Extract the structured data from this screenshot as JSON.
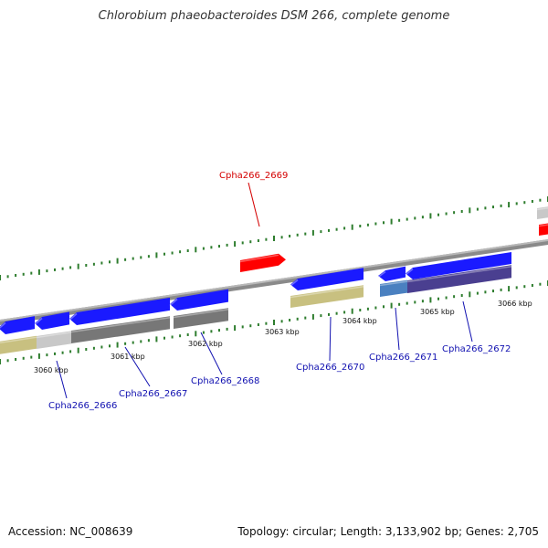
{
  "title": "Chlorobium phaeobacteroides DSM 266, complete genome",
  "accession": "Accession: NC_008639",
  "topology": "Topology: circular; Length: 3,133,902 bp; Genes: 2,705",
  "colors": {
    "backbone": "#8a8a8a",
    "ticks": "#2e7d2e",
    "highlight_label": "#d40000",
    "gene_label": "#1010b0",
    "blue_gene": "#1a1aff",
    "red_gene": "#ff0000",
    "khaki": "#c8c080",
    "gray": "#777777",
    "light_gray": "#c8c8c8",
    "steel_blue": "#4a80c0",
    "slate_purple": "#4a3f90"
  },
  "kbp_labels": [
    "3060 kbp",
    "3061 kbp",
    "3062 kbp",
    "3063 kbp",
    "3064 kbp",
    "3065 kbp",
    "3066 kbp"
  ],
  "gene_labels": [
    "Cpha266_2666",
    "Cpha266_2667",
    "Cpha266_2668",
    "Cpha266_2669",
    "Cpha266_2670",
    "Cpha266_2671",
    "Cpha266_2672"
  ]
}
